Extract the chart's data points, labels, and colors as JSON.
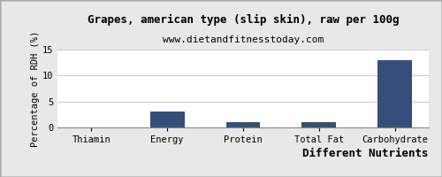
{
  "title": "Grapes, american type (slip skin), raw per 100g",
  "subtitle": "www.dietandfitnesstoday.com",
  "xlabel": "Different Nutrients",
  "ylabel": "Percentage of RDH (%)",
  "categories": [
    "Thiamin",
    "Energy",
    "Protein",
    "Total Fat",
    "Carbohydrate"
  ],
  "values": [
    0.05,
    3.0,
    1.0,
    1.1,
    13.0
  ],
  "bar_color": "#354f7a",
  "ylim": [
    0,
    15
  ],
  "yticks": [
    0,
    5,
    10,
    15
  ],
  "background_color": "#e8e8e8",
  "plot_bg_color": "#ffffff",
  "title_fontsize": 9,
  "subtitle_fontsize": 8,
  "xlabel_fontsize": 9,
  "ylabel_fontsize": 7.5,
  "tick_fontsize": 7.5,
  "bar_width": 0.45
}
